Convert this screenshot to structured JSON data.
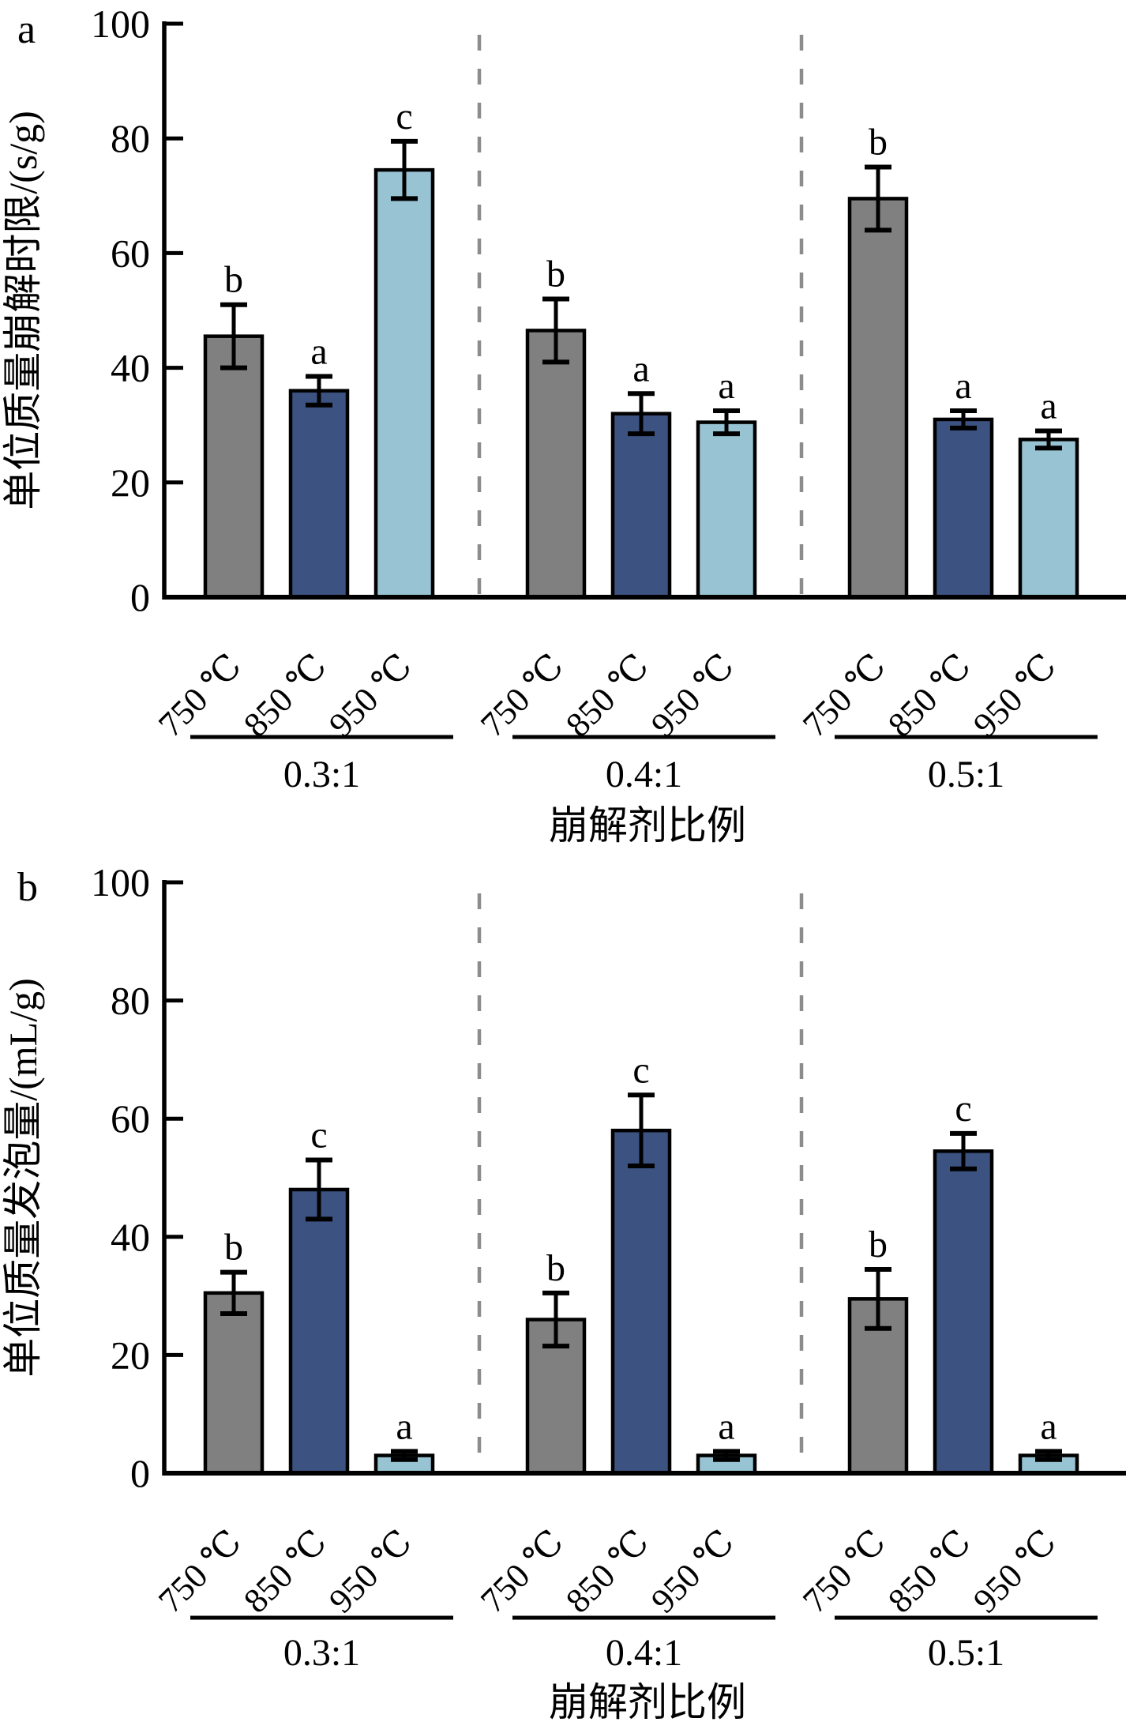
{
  "chart_data": [
    {
      "type": "bar",
      "panel_label": "a",
      "title": "",
      "xlabel": "崩解剂比例",
      "ylabel": "单位质量崩解时限/(s/g)",
      "ylim": [
        0,
        100
      ],
      "yticks": [
        0,
        20,
        40,
        60,
        80,
        100
      ],
      "categories": [
        "0.3:1",
        "0.4:1",
        "0.5:1"
      ],
      "x_tick_labels": [
        "750 ℃",
        "850 ℃",
        "950 ℃"
      ],
      "grid": false,
      "legend_position": "none",
      "group_separator_color": "#8C8C8C",
      "series": [
        {
          "name": "750 ℃",
          "color": "#808080",
          "values": [
            45.5,
            46.5,
            69.5
          ],
          "errors": [
            5.5,
            5.5,
            5.5
          ],
          "sig_letters": [
            "b",
            "b",
            "b"
          ]
        },
        {
          "name": "850 ℃",
          "color": "#3C5280",
          "values": [
            36,
            32,
            31
          ],
          "errors": [
            2.5,
            3.5,
            1.5
          ],
          "sig_letters": [
            "a",
            "a",
            "a"
          ]
        },
        {
          "name": "950 ℃",
          "color": "#97C3D3",
          "values": [
            74.5,
            30.5,
            27.5
          ],
          "errors": [
            5,
            2,
            1.5
          ],
          "sig_letters": [
            "c",
            "a",
            "a"
          ]
        }
      ]
    },
    {
      "type": "bar",
      "panel_label": "b",
      "title": "",
      "xlabel": "崩解剂比例",
      "ylabel": "单位质量发泡量/(mL/g)",
      "ylim": [
        0,
        100
      ],
      "yticks": [
        0,
        20,
        40,
        60,
        80,
        100
      ],
      "categories": [
        "0.3:1",
        "0.4:1",
        "0.5:1"
      ],
      "x_tick_labels": [
        "750 ℃",
        "850 ℃",
        "950 ℃"
      ],
      "grid": false,
      "legend_position": "none",
      "group_separator_color": "#8C8C8C",
      "series": [
        {
          "name": "750 ℃",
          "color": "#808080",
          "values": [
            30.5,
            26,
            29.5
          ],
          "errors": [
            3.5,
            4.5,
            5
          ],
          "sig_letters": [
            "b",
            "b",
            "b"
          ]
        },
        {
          "name": "850 ℃",
          "color": "#3C5280",
          "values": [
            48,
            58,
            54.5
          ],
          "errors": [
            5,
            6,
            3
          ],
          "sig_letters": [
            "c",
            "c",
            "c"
          ]
        },
        {
          "name": "950 ℃",
          "color": "#97C3D3",
          "values": [
            3,
            3,
            3
          ],
          "errors": [
            0.7,
            0.7,
            0.7
          ],
          "sig_letters": [
            "a",
            "a",
            "a"
          ]
        }
      ]
    }
  ]
}
